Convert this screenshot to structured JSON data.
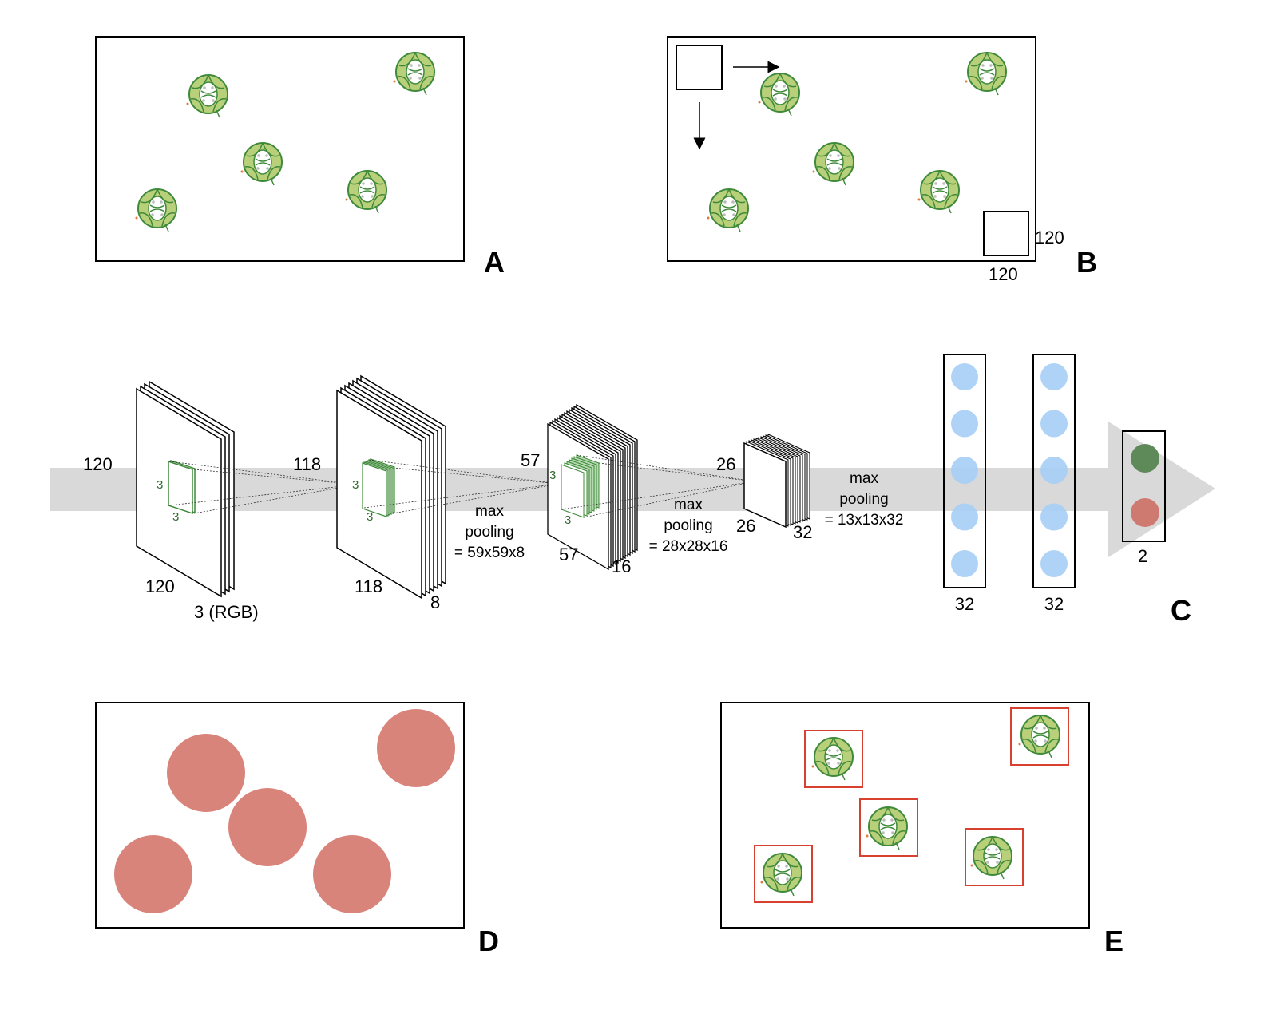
{
  "panels": {
    "a": {
      "letter": "A"
    },
    "b": {
      "letter": "B",
      "window_width": "120",
      "window_height": "120"
    },
    "c": {
      "letter": "C",
      "input": {
        "height": "120",
        "width": "120",
        "depth": "3 (RGB)",
        "kernel_h": "3",
        "kernel_w": "3"
      },
      "conv1": {
        "height": "118",
        "width": "118",
        "depth": "8",
        "kernel_h": "3",
        "kernel_w": "3",
        "pool_label": "max\npooling\n= 59x59x8"
      },
      "conv2": {
        "height": "57",
        "width": "57",
        "depth": "16",
        "kernel_h": "3",
        "kernel_w": "3",
        "pool_label": "max\npooling\n= 28x28x16"
      },
      "conv3": {
        "height": "26",
        "width": "26",
        "depth": "32",
        "pool_label": "max\npooling\n= 13x13x32"
      },
      "dense1": {
        "units": "32",
        "nodes": 5
      },
      "dense2": {
        "units": "32",
        "nodes": 5
      },
      "output": {
        "units": "2",
        "nodes": 2
      }
    },
    "d": {
      "letter": "D"
    },
    "e": {
      "letter": "E"
    }
  },
  "colors": {
    "arrow": "#d9d9d9",
    "frame": "#000000",
    "plant_fill": "#b9d07a",
    "plant_stroke": "#3f8a3a",
    "kernel": "#3f8a3a",
    "neuron": "#a6cef5",
    "output_class_1": "#5e8a5a",
    "output_class_2": "#cf7a70",
    "mask": "#d9847b",
    "bbox": "#d8412f"
  },
  "icons": {
    "plant": "leaf-cross-section-icon"
  }
}
